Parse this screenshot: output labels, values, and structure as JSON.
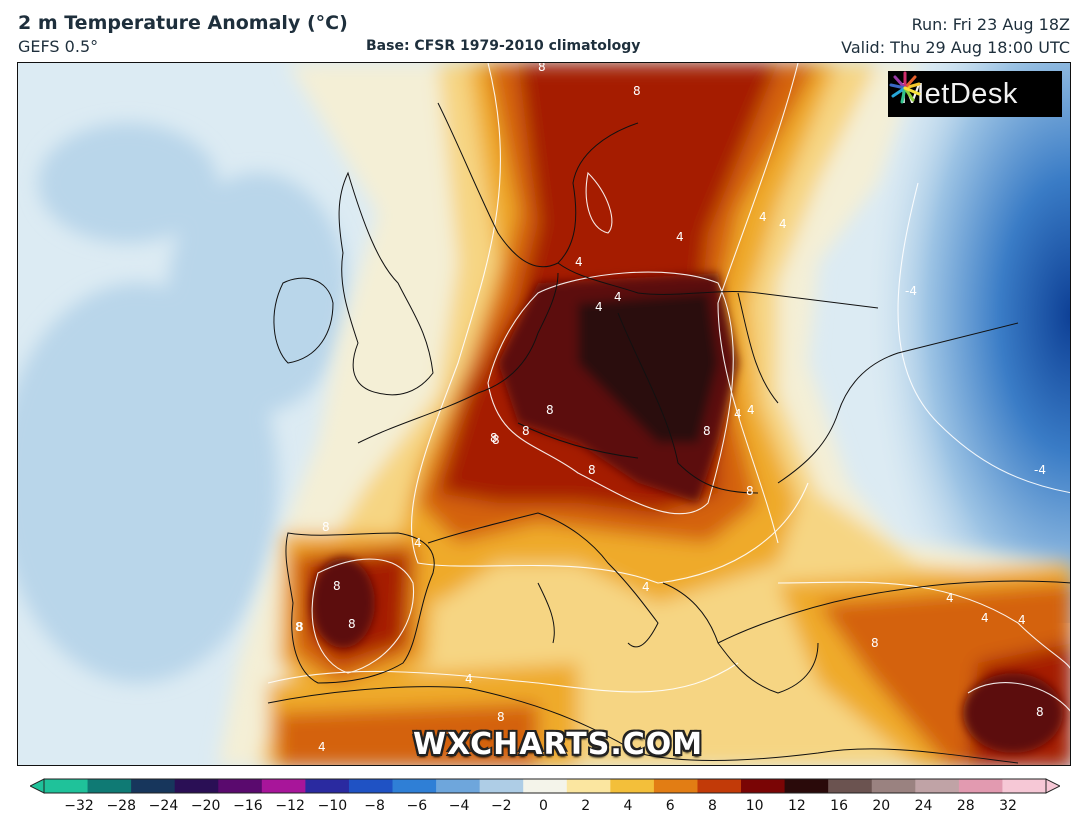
{
  "header": {
    "title": "2 m Temperature Anomaly (°C)",
    "model": "GEFS 0.5°",
    "base": "Base: CFSR 1979-2010 climatology",
    "run": "Run: Fri 23 Aug 18Z",
    "valid": "Valid: Thu 29 Aug 18:00 UTC"
  },
  "logo": {
    "text": "MetDesk",
    "icon": "metdesk-burst-icon"
  },
  "watermark": "WXCHARTS.COM",
  "colorbar": {
    "ticks": [
      "−32",
      "−28",
      "−24",
      "−20",
      "−16",
      "−12",
      "−10",
      "−8",
      "−6",
      "−4",
      "−2",
      "0",
      "2",
      "4",
      "6",
      "8",
      "10",
      "12",
      "16",
      "20",
      "24",
      "28",
      "32"
    ],
    "colors": [
      "#1fc29a",
      "#0f7a74",
      "#17365c",
      "#2a0f55",
      "#5a0a6e",
      "#a8159a",
      "#2a2aa0",
      "#1f52c4",
      "#2f7fd6",
      "#6ea6dc",
      "#aecde6",
      "#f4f4ea",
      "#fbe6a0",
      "#f3bf3a",
      "#e27d14",
      "#c23a08",
      "#7a0505",
      "#2a0a0a",
      "#6b5350",
      "#9a8280",
      "#c0a3a6",
      "#e29ab0",
      "#f6c8d6"
    ],
    "min_arrow_color": "#1fc29a",
    "max_arrow_color": "#f6c8d6"
  },
  "contour_labels": [
    {
      "text": "8"
    },
    {
      "text": "8"
    },
    {
      "text": "4"
    },
    {
      "text": "4"
    },
    {
      "text": "4"
    },
    {
      "text": "8"
    },
    {
      "text": "8"
    },
    {
      "text": "8"
    },
    {
      "text": "4"
    },
    {
      "text": "-4"
    },
    {
      "text": "8"
    },
    {
      "text": "8"
    },
    {
      "text": "8"
    },
    {
      "text": "4"
    },
    {
      "text": "8"
    },
    {
      "text": "4"
    },
    {
      "text": "-4"
    },
    {
      "text": "8"
    },
    {
      "text": "8"
    },
    {
      "text": "8"
    },
    {
      "text": "4"
    },
    {
      "text": "4"
    },
    {
      "text": "8"
    },
    {
      "text": "4"
    },
    {
      "text": "8"
    },
    {
      "text": "4"
    },
    {
      "text": "8"
    },
    {
      "text": "8"
    },
    {
      "text": "4"
    },
    {
      "text": "4"
    },
    {
      "text": "4"
    },
    {
      "text": "8"
    },
    {
      "text": "4"
    },
    {
      "text": "4"
    }
  ],
  "map_colors": {
    "ocean_anomaly": "#dcebf3",
    "cool_anomaly": "#b9d6ea",
    "cold_anomaly": "#3a7cc6",
    "very_cold_anomaly": "#0d3f95",
    "neutral": "#f4efd6",
    "warm_2": "#f6d583",
    "warm_4": "#efaa2c",
    "warm_6": "#d4620e",
    "warm_8": "#a51f05",
    "hot_10": "#5c0808",
    "hot_12": "#2c0a0a"
  }
}
